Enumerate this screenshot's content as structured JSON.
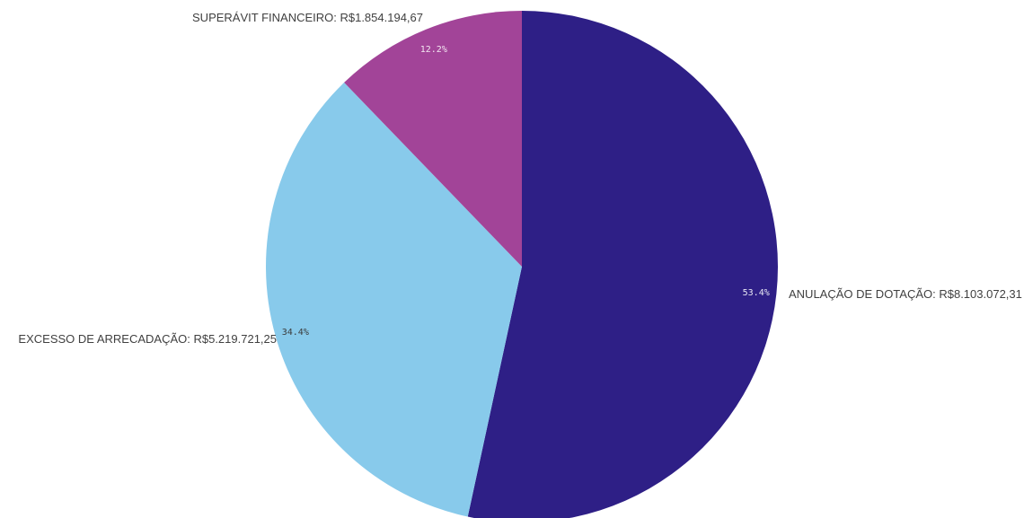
{
  "chart_data": {
    "type": "pie",
    "start_angle_deg": 0,
    "direction": "clockwise",
    "slices": [
      {
        "name": "ANULAÇÃO DE DOTAÇÃO",
        "label": "ANULAÇÃO DE DOTAÇÃO: R$8.103.072,31",
        "value": 8103072.31,
        "percent": 53.4,
        "percent_label": "53.4%",
        "color": "#2e1f86",
        "pct_color": "#e8e8f4"
      },
      {
        "name": "EXCESSO DE ARRECADAÇÃO",
        "label": "EXCESSO DE ARRECADAÇÃO: R$5.219.721,25",
        "value": 5219721.25,
        "percent": 34.4,
        "percent_label": "34.4%",
        "color": "#88caeb",
        "pct_color": "#3a3a3a"
      },
      {
        "name": "SUPERÁVIT FINANCEIRO",
        "label": "SUPERÁVIT FINANCEIRO: R$1.854.194,67",
        "value": 1854194.67,
        "percent": 12.2,
        "percent_label": "12.2%",
        "color": "#a24498",
        "pct_color": "#f3e6f1"
      }
    ]
  }
}
